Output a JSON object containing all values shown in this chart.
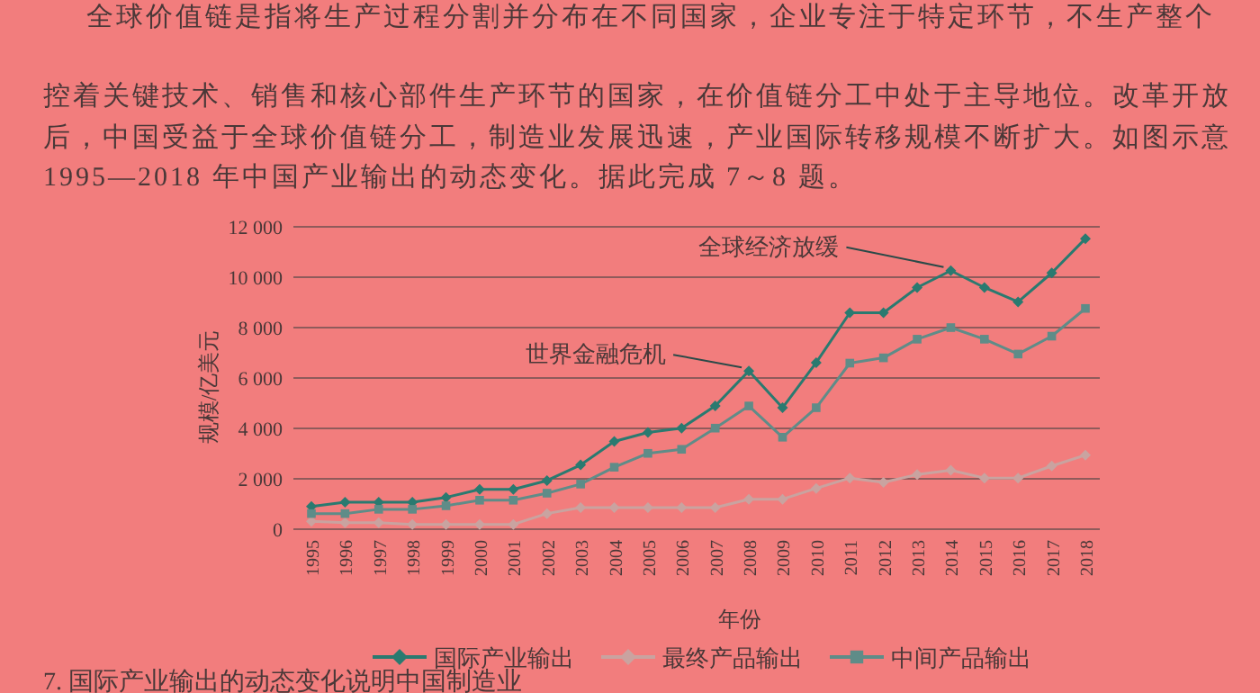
{
  "chart_data": {
    "type": "line",
    "categories": [
      "1995",
      "1996",
      "1997",
      "1998",
      "1999",
      "2000",
      "2001",
      "2002",
      "2003",
      "2004",
      "2005",
      "2006",
      "2007",
      "2008",
      "2009",
      "2010",
      "2011",
      "2012",
      "2013",
      "2014",
      "2015",
      "2016",
      "2017",
      "2018"
    ],
    "series": [
      {
        "name": "国际产业输出",
        "color": "#2a7a70",
        "marker": "diamond",
        "values": [
          900,
          1070,
          1070,
          1070,
          1260,
          1580,
          1580,
          1930,
          2550,
          3480,
          3840,
          4010,
          4890,
          6280,
          4820,
          6610,
          8590,
          8590,
          9590,
          10260,
          9590,
          9020,
          10170,
          11530
        ]
      },
      {
        "name": "最终产品输出",
        "color": "#c9a3a0",
        "marker": "diamond",
        "values": [
          310,
          260,
          260,
          190,
          190,
          190,
          190,
          620,
          860,
          860,
          860,
          860,
          860,
          1190,
          1190,
          1620,
          2030,
          1860,
          2170,
          2340,
          2030,
          2030,
          2510,
          2940
        ]
      },
      {
        "name": "中间产品输出",
        "color": "#5f8c88",
        "marker": "square",
        "values": [
          620,
          620,
          790,
          790,
          930,
          1150,
          1150,
          1430,
          1790,
          2460,
          3010,
          3170,
          4010,
          4890,
          3650,
          4820,
          6590,
          6800,
          7540,
          8000,
          7540,
          6950,
          7660,
          8760
        ]
      }
    ],
    "ylim": [
      0,
      12000
    ],
    "yticks": [
      0,
      {
        "value": 2000,
        "label": "2 000"
      },
      {
        "value": 4000,
        "label": "4 000"
      },
      {
        "value": 6000,
        "label": "6 000"
      },
      {
        "value": 8000,
        "label": "8 000"
      },
      {
        "value": 10000,
        "label": "10 000"
      },
      {
        "value": 12000,
        "label": "12 000"
      }
    ],
    "xlabel": "年份",
    "ylabel": "规模/亿美元",
    "grid": "y",
    "legend": "bottom",
    "annotations": [
      {
        "text": "全球经济放缓",
        "x": "2014",
        "y": 10260
      },
      {
        "text": "世界金融危机",
        "x": "2008",
        "y": 6280
      },
      "全球价值链是指将生产过程分割并分布在不同国家，企业专注于特定环节，不生产整个",
      "控着关键技术、销售和核心部件生产环节的国家，在价值链分工中处于主导地位。改革开放",
      "后，中国受益于全球价值链分工，制造业发展迅速，产业国际转移规模不断扩大。如图示意",
      "1995—2018 年中国产业输出的动态变化。据此完成 7～8 题。",
      "7. 国际产业输出的动态变化说明中国制造业"
    ]
  }
}
